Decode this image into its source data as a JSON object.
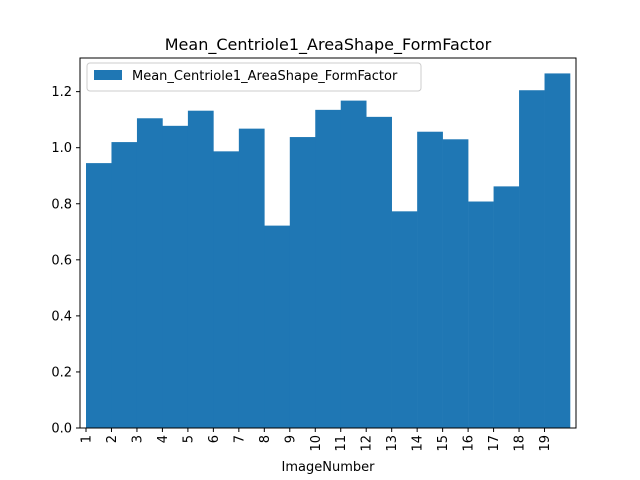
{
  "chart_data": {
    "type": "bar",
    "title": "Mean_Centriole1_AreaShape_FormFactor",
    "xlabel": "ImageNumber",
    "ylabel": "",
    "categories": [
      "1",
      "2",
      "3",
      "4",
      "5",
      "6",
      "7",
      "8",
      "9",
      "10",
      "11",
      "12",
      "13",
      "14",
      "15",
      "16",
      "17",
      "18",
      "19"
    ],
    "series": [
      {
        "name": "Mean_Centriole1_AreaShape_FormFactor",
        "color": "#1f77b4",
        "values": [
          0.945,
          1.02,
          1.105,
          1.078,
          1.132,
          0.987,
          1.068,
          0.722,
          1.038,
          1.135,
          1.168,
          1.11,
          0.773,
          1.057,
          1.03,
          0.808,
          0.862,
          1.205,
          1.265
        ]
      }
    ],
    "ylim": [
      0,
      1.32
    ],
    "yticks": [
      0.0,
      0.2,
      0.4,
      0.6,
      0.8,
      1.0,
      1.2
    ],
    "ytick_labels": [
      "0.0",
      "0.2",
      "0.4",
      "0.6",
      "0.8",
      "1.0",
      "1.2"
    ],
    "grid": false,
    "legend_position": "top-left",
    "x_tick_rotation": "vertical"
  }
}
